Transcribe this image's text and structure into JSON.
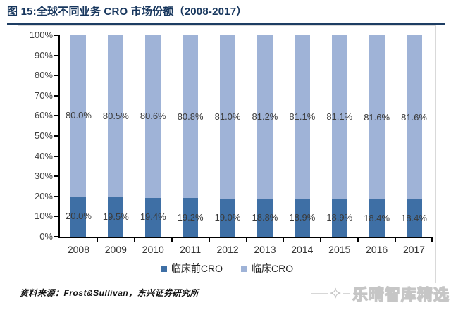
{
  "title": "图 15:全球不同业务 CRO 市场份额（2008-2017）",
  "source": {
    "prefix": "资料来源：",
    "body": "Frost&Sullivan，东兴证券研究所"
  },
  "watermark": {
    "icon": "✦",
    "text": "乐晴智库精选"
  },
  "colors": {
    "title": "#17365d",
    "preclinical_bar": "#3e6fa5",
    "clinical_bar": "#9fb3d7",
    "axis": "#000000",
    "frame_border": "#d9d9d9"
  },
  "chart_data": {
    "type": "bar",
    "stacked": true,
    "title": "图 15:全球不同业务 CRO 市场份额（2008-2017）",
    "categories": [
      "2008",
      "2009",
      "2010",
      "2011",
      "2012",
      "2013",
      "2014",
      "2015",
      "2016",
      "2017"
    ],
    "series": [
      {
        "name": "临床前CRO",
        "color": "#3e6fa5",
        "values": [
          20.0,
          19.5,
          19.4,
          19.2,
          19.0,
          18.8,
          18.9,
          18.9,
          18.4,
          18.4
        ],
        "labels": [
          "20.0%",
          "19.5%",
          "19.4%",
          "19.2%",
          "19.0%",
          "18.8%",
          "18.9%",
          "18.9%",
          "18.4%",
          "18.4%"
        ]
      },
      {
        "name": "临床CRO",
        "color": "#9fb3d7",
        "values": [
          80.0,
          80.5,
          80.6,
          80.8,
          81.0,
          81.2,
          81.1,
          81.1,
          81.6,
          81.6
        ],
        "labels": [
          "80.0%",
          "80.5%",
          "80.6%",
          "80.8%",
          "81.0%",
          "81.2%",
          "81.1%",
          "81.1%",
          "81.6%",
          "81.6%"
        ]
      }
    ],
    "xlabel": "",
    "ylabel": "",
    "ylim": [
      0,
      100
    ],
    "yticks": [
      "0%",
      "10%",
      "20%",
      "30%",
      "40%",
      "50%",
      "60%",
      "70%",
      "80%",
      "90%",
      "100%"
    ],
    "grid": false,
    "legend_position": "bottom",
    "data_labels": true
  }
}
